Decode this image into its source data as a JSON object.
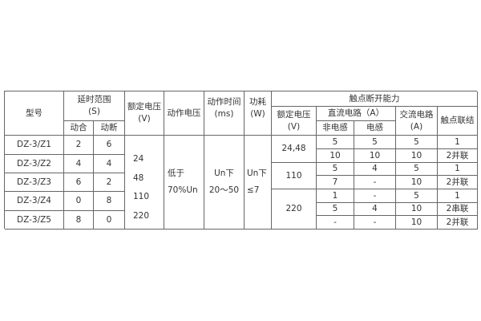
{
  "header": {
    "model": "型号",
    "delay_range": [
      "延时范围",
      "(S)"
    ],
    "make": "动合",
    "break": "动断",
    "rated_voltage": [
      "额定电压",
      "(V)"
    ],
    "operate_voltage": "动作电压",
    "operate_time": [
      "动作时间",
      "(ms)"
    ],
    "power": [
      "功耗",
      "(W)"
    ],
    "contact_capacity": "触点断开能力",
    "contact_rated_voltage": [
      "额定电压",
      "(V)"
    ],
    "dc_circuit": "直流电路（A）",
    "non_inductive": "非电感",
    "inductive": "电感",
    "ac_circuit": [
      "交流电路",
      "(A)"
    ],
    "contact_connection": "触点联结"
  },
  "left_rows": [
    {
      "model": "DZ-3/Z1",
      "make": "2",
      "break": "6"
    },
    {
      "model": "DZ-3/Z2",
      "make": "4",
      "break": "4"
    },
    {
      "model": "DZ-3/Z3",
      "make": "6",
      "break": "2"
    },
    {
      "model": "DZ-3/Z4",
      "make": "0",
      "break": "8"
    },
    {
      "model": "DZ-3/Z5",
      "make": "8",
      "break": "0"
    }
  ],
  "rated_voltages": [
    "24",
    "48",
    "110",
    "220"
  ],
  "operate_voltage": [
    "低于",
    "70%Un"
  ],
  "operate_time": [
    "Un下",
    "20～50"
  ],
  "power": [
    "Un下",
    "≤7"
  ],
  "voltage_groups": [
    "24,48",
    "110",
    "220"
  ],
  "right_rows": [
    {
      "non_inductive": "5",
      "inductive": "5",
      "ac": "5",
      "connection": "1"
    },
    {
      "non_inductive": "10",
      "inductive": "10",
      "ac": "10",
      "connection": "2并联"
    },
    {
      "non_inductive": "5",
      "inductive": "4",
      "ac": "5",
      "connection": "1"
    },
    {
      "non_inductive": "7",
      "inductive": "-",
      "ac": "10",
      "connection": "2并联"
    },
    {
      "non_inductive": "1",
      "inductive": "-",
      "ac": "5",
      "connection": "1"
    },
    {
      "non_inductive": "5",
      "inductive": "4",
      "ac": "10",
      "connection": "2串联"
    },
    {
      "non_inductive": "-",
      "inductive": "-",
      "ac": "10",
      "connection": "2并联"
    }
  ]
}
